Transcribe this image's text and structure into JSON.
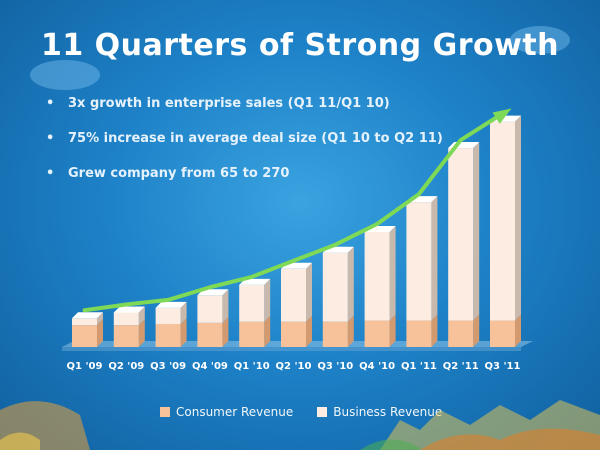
{
  "slide": {
    "title": "11 Quarters of Strong Growth",
    "bullets": [
      "3x growth in enterprise sales (Q1 11/Q1 10)",
      "75% increase in average deal size (Q1 10 to Q2 11)",
      "Grew company from 65 to 270"
    ]
  },
  "chart_data": {
    "type": "bar",
    "stacked": true,
    "categories": [
      "Q1 '09",
      "Q2 '09",
      "Q3 '09",
      "Q4 '09",
      "Q1 '10",
      "Q2 '10",
      "Q3 '10",
      "Q4 '10",
      "Q1 '11",
      "Q2 '11",
      "Q3 '11"
    ],
    "series": [
      {
        "name": "Consumer Revenue",
        "color": "#f7c29a",
        "values": [
          19,
          19,
          20,
          21,
          22,
          22,
          22,
          23,
          23,
          23,
          23
        ]
      },
      {
        "name": "Business Revenue",
        "color": "#fcece1",
        "values": [
          6,
          11,
          14,
          24,
          32,
          46,
          60,
          77,
          103,
          150,
          173
        ]
      }
    ],
    "trend_arrow_color": "#7ed957",
    "legend_position": "bottom",
    "gridlines": false
  }
}
